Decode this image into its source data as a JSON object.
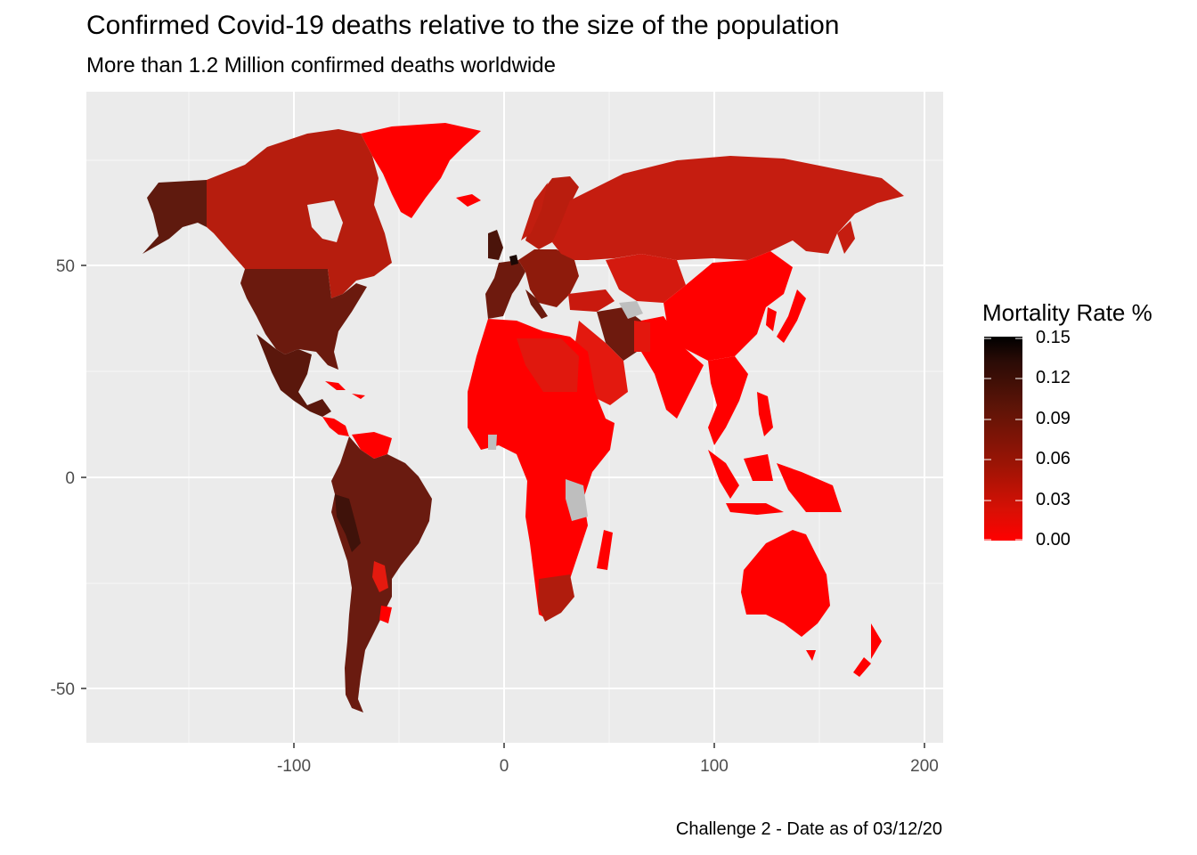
{
  "title": "Confirmed Covid-19 deaths relative to the size of the population",
  "subtitle": "More than 1.2 Million confirmed deaths worldwide",
  "caption": "Challenge 2 - Date as of 03/12/20",
  "axes": {
    "x_ticks": [
      "-100",
      "0",
      "100",
      "200"
    ],
    "y_ticks": [
      "50",
      "0",
      "-50"
    ],
    "x_range": [
      -190,
      210
    ],
    "y_range": [
      -63,
      92
    ],
    "grid": true
  },
  "legend": {
    "title": "Mortality Rate %",
    "labels": [
      "0.15",
      "0.12",
      "0.09",
      "0.06",
      "0.03",
      "0.00"
    ],
    "low_color": "#ff0000",
    "high_color": "#000000"
  },
  "colors": {
    "panel_background": "#ebebeb",
    "gridline": "#ffffff",
    "no_data": "#bebebe",
    "very_high": "#3b0f07",
    "high": "#6e1a0e",
    "mid": "#b01c0d",
    "low_mid": "#d11a0f",
    "low": "#ff0000"
  }
}
